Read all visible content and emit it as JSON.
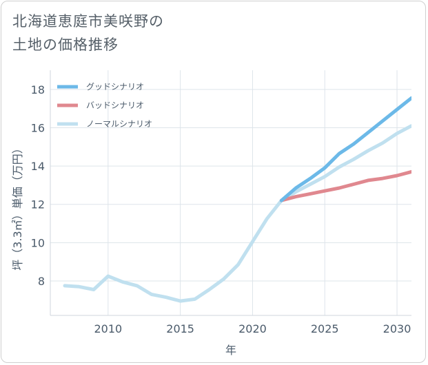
{
  "title_line1": "北海道恵庭市美咲野の",
  "title_line2": "土地の価格推移",
  "chart_data": {
    "type": "line",
    "xlabel": "年",
    "ylabel": "坪（3.3㎡）単価（万円）",
    "xlim": [
      2006,
      2031
    ],
    "ylim": [
      6.2,
      19
    ],
    "xticks": [
      2010,
      2015,
      2020,
      2025,
      2030
    ],
    "yticks": [
      8,
      10,
      12,
      14,
      16,
      18
    ],
    "grid": true,
    "legend_position": "top-left",
    "series": [
      {
        "name": "グッドシナリオ",
        "color": "#6cb9e8",
        "x": [
          2022,
          2023,
          2024,
          2025,
          2026,
          2027,
          2028,
          2029,
          2030,
          2031
        ],
        "y": [
          12.2,
          12.85,
          13.35,
          13.9,
          14.65,
          15.15,
          15.75,
          16.35,
          16.95,
          17.55
        ]
      },
      {
        "name": "バッドシナリオ",
        "color": "#e0888f",
        "x": [
          2022,
          2023,
          2024,
          2025,
          2026,
          2027,
          2028,
          2029,
          2030,
          2031
        ],
        "y": [
          12.2,
          12.4,
          12.55,
          12.7,
          12.85,
          13.05,
          13.25,
          13.35,
          13.5,
          13.7
        ]
      },
      {
        "name": "ノーマルシナリオ",
        "color": "#c0e0ef",
        "x": [
          2007,
          2008,
          2009,
          2010,
          2011,
          2012,
          2013,
          2014,
          2015,
          2016,
          2017,
          2018,
          2019,
          2020,
          2021,
          2022,
          2023,
          2024,
          2025,
          2026,
          2027,
          2028,
          2029,
          2030,
          2031
        ],
        "y": [
          7.75,
          7.7,
          7.55,
          8.25,
          7.95,
          7.75,
          7.3,
          7.15,
          6.95,
          7.05,
          7.55,
          8.1,
          8.85,
          10.05,
          11.25,
          12.2,
          12.65,
          13.05,
          13.45,
          13.95,
          14.35,
          14.8,
          15.2,
          15.7,
          16.1
        ]
      }
    ]
  }
}
